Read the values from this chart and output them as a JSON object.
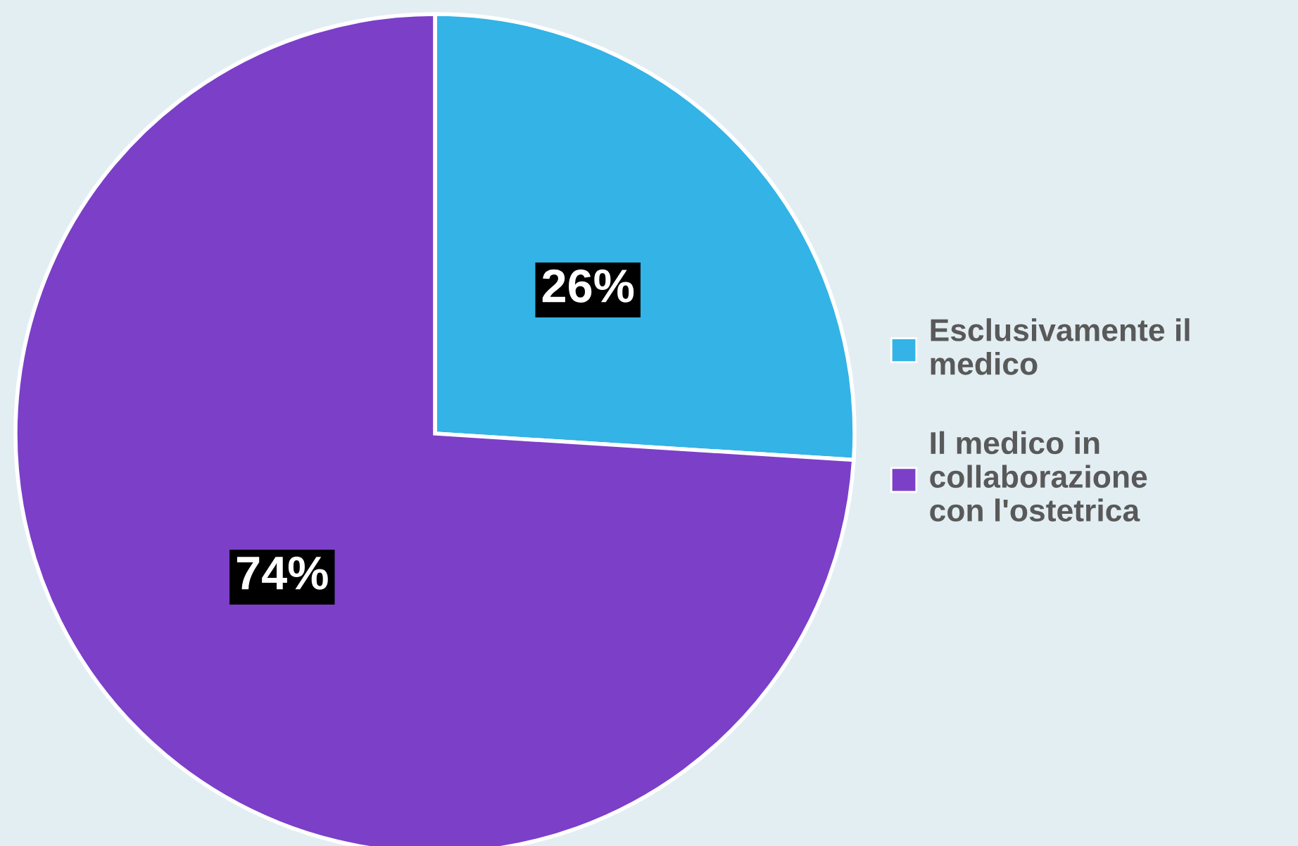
{
  "chart_data": {
    "type": "pie",
    "categories": [
      "Esclusivamente il medico",
      "Il medico in collaborazione con l'ostetrica"
    ],
    "values": [
      26,
      74
    ],
    "colors": [
      "#33b3e6",
      "#7b3fc8"
    ],
    "value_labels": [
      "26%",
      "74%"
    ],
    "legend": "right"
  }
}
